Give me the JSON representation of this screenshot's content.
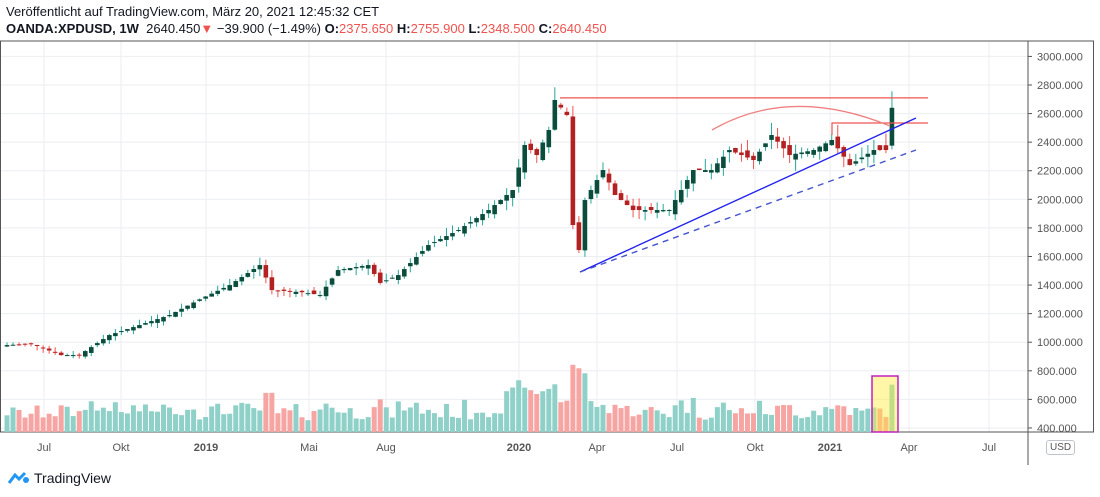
{
  "header": {
    "published": "Veröffentlicht auf TradingView.com, März 20, 2021 12:45:32 CET",
    "symbol": "OANDA:XPDUSD, 1W",
    "last": "2640.450",
    "change": "−39.900 (−1.49%)",
    "o_label": "O:",
    "o": "2375.650",
    "h_label": "H:",
    "h": "2755.900",
    "l_label": "L:",
    "l": "2348.500",
    "c_label": "C:",
    "c": "2640.450"
  },
  "currency": "USD",
  "footer": {
    "brand": "TradingView"
  },
  "colors": {
    "up_body": "#0b4d3c",
    "up_wick": "#26a69a",
    "down_body": "#b22222",
    "down_wick": "#ef5350",
    "vol_up": "#8fd1c8",
    "vol_down": "#f6a5a3",
    "line": "#ef5350",
    "trend": "#2222ee"
  },
  "chart_data": {
    "type": "candlestick",
    "interval": "1W",
    "ylim": [
      400,
      3000
    ],
    "y_ticks": [
      "3000.000",
      "2800.000",
      "2600.000",
      "2400.000",
      "2200.000",
      "2000.000",
      "1800.000",
      "1600.000",
      "1400.000",
      "1200.000",
      "1000.000",
      "800.000",
      "600.000",
      "400.000"
    ],
    "x_ticks": [
      "Jul",
      "Okt",
      "2019",
      "Mai",
      "Aug",
      "2020",
      "Apr",
      "Jul",
      "Okt",
      "2021",
      "Apr",
      "Jul"
    ],
    "close_anchors": [
      [
        0,
        980
      ],
      [
        4,
        990
      ],
      [
        9,
        910
      ],
      [
        12,
        910
      ],
      [
        17,
        1050
      ],
      [
        22,
        1120
      ],
      [
        27,
        1190
      ],
      [
        32,
        1300
      ],
      [
        37,
        1400
      ],
      [
        42,
        1540
      ],
      [
        44,
        1365
      ],
      [
        49,
        1350
      ],
      [
        52,
        1330
      ],
      [
        55,
        1505
      ],
      [
        60,
        1540
      ],
      [
        62,
        1415
      ],
      [
        65,
        1470
      ],
      [
        70,
        1680
      ],
      [
        75,
        1785
      ],
      [
        80,
        1925
      ],
      [
        84,
        2065
      ],
      [
        86,
        2380
      ],
      [
        88,
        2310
      ],
      [
        90,
        2485
      ],
      [
        91,
        2695
      ],
      [
        93,
        2590
      ],
      [
        94,
        1820
      ],
      [
        95,
        1645
      ],
      [
        96,
        1995
      ],
      [
        99,
        2205
      ],
      [
        101,
        2030
      ],
      [
        104,
        1925
      ],
      [
        107,
        1925
      ],
      [
        110,
        1925
      ],
      [
        114,
        2205
      ],
      [
        117,
        2205
      ],
      [
        120,
        2345
      ],
      [
        124,
        2275
      ],
      [
        127,
        2450
      ],
      [
        130,
        2310
      ],
      [
        134,
        2345
      ],
      [
        137,
        2415
      ],
      [
        140,
        2240
      ],
      [
        144,
        2345
      ],
      [
        146,
        2345
      ],
      [
        147,
        2640
      ]
    ],
    "resistance": 2710,
    "last_bar": {
      "open": 2375.65,
      "high": 2755.9,
      "low": 2348.5,
      "close": 2640.45
    }
  }
}
